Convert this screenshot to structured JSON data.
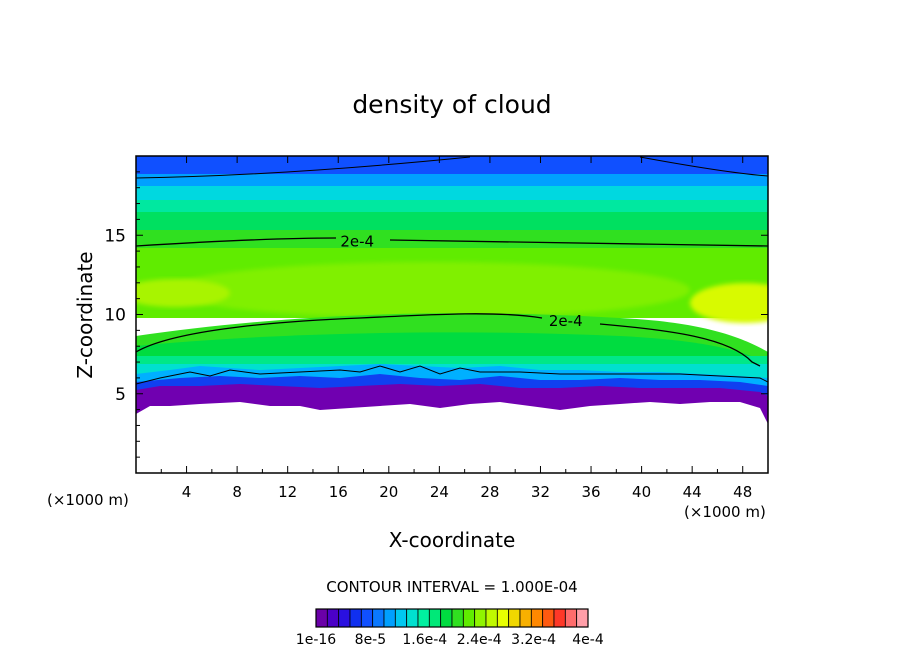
{
  "chart_data": {
    "type": "heatmap",
    "title": "density of cloud",
    "xlabel": "X-coordinate",
    "ylabel": "Z-coordinate",
    "x_unit_left": "(×1000 m)",
    "x_unit_right": "(×1000 m)",
    "xlim": [
      0,
      50
    ],
    "ylim": [
      0,
      20
    ],
    "x_ticks": [
      4,
      8,
      12,
      16,
      20,
      24,
      28,
      32,
      36,
      40,
      44,
      48
    ],
    "y_ticks": [
      5,
      10,
      15
    ],
    "contour_interval_text": "CONTOUR INTERVAL = 1.000E-04",
    "contour_labels": [
      {
        "text": "2e-4",
        "x": 17.5,
        "z": 14.6
      },
      {
        "text": "2e-4",
        "x": 34,
        "z": 9.6
      }
    ],
    "colorbar": {
      "min": 1e-16,
      "max": 0.0004,
      "n_levels": 24,
      "tick_labels": [
        "1e-16",
        "8e-5",
        "1.6e-4",
        "2.4e-4",
        "3.2e-4",
        "4e-4"
      ],
      "colors": [
        "#6a00a8",
        "#4b00c8",
        "#2a10e0",
        "#1030f0",
        "#1050ff",
        "#0a78ff",
        "#00a0ff",
        "#00c8f0",
        "#00e0d0",
        "#00f0a0",
        "#00e878",
        "#00dc40",
        "#30e020",
        "#60ec00",
        "#90f400",
        "#c0fa00",
        "#e8ff00",
        "#f0d800",
        "#f8b000",
        "#ff8800",
        "#ff5a10",
        "#ff3828",
        "#ff6c6c",
        "#ff9ea8"
      ]
    }
  }
}
